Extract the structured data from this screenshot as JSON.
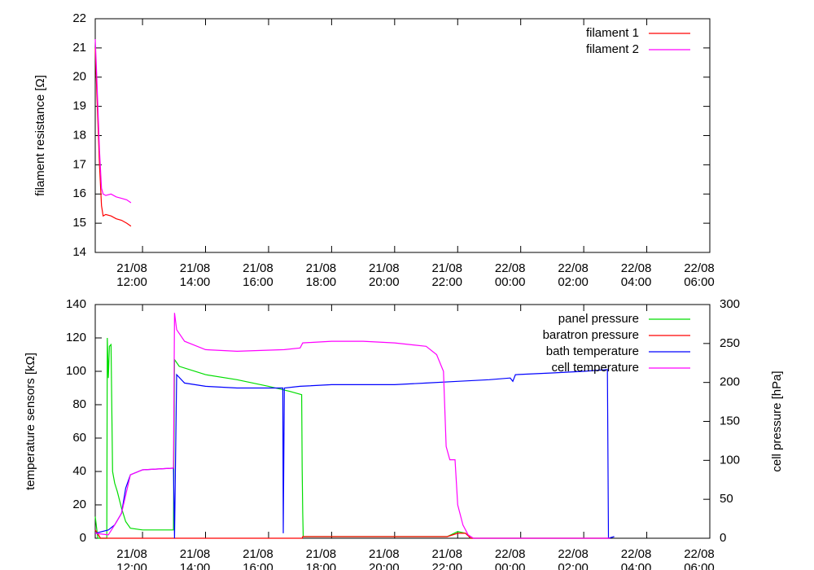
{
  "chart_data": [
    {
      "type": "line",
      "ylabel": "filament resistance [Ω]",
      "x": [
        "21/08 10:30",
        "21/08 10:33",
        "21/08 10:38",
        "21/08 10:42",
        "21/08 10:45",
        "21/08 10:50",
        "21/08 11:00",
        "21/08 11:10",
        "21/08 11:20",
        "21/08 11:30",
        "21/08 11:38"
      ],
      "series": [
        {
          "name": "filament 1",
          "color": "#ff0000",
          "values": [
            21.0,
            19.5,
            17.0,
            15.6,
            15.25,
            15.3,
            15.25,
            15.15,
            15.1,
            15.0,
            14.9
          ]
        },
        {
          "name": "filament 2",
          "color": "#ff00ff",
          "values": [
            21.3,
            20.0,
            17.5,
            16.2,
            16.0,
            15.95,
            16.0,
            15.9,
            15.85,
            15.8,
            15.7
          ]
        }
      ],
      "xlim": [
        "21/08 10:30",
        "22/08 06:00"
      ],
      "xticks": [
        {
          "date": "21/08",
          "time": "12:00"
        },
        {
          "date": "21/08",
          "time": "14:00"
        },
        {
          "date": "21/08",
          "time": "16:00"
        },
        {
          "date": "21/08",
          "time": "18:00"
        },
        {
          "date": "21/08",
          "time": "20:00"
        },
        {
          "date": "21/08",
          "time": "22:00"
        },
        {
          "date": "22/08",
          "time": "00:00"
        },
        {
          "date": "22/08",
          "time": "02:00"
        },
        {
          "date": "22/08",
          "time": "04:00"
        },
        {
          "date": "22/08",
          "time": "06:00"
        }
      ],
      "ylim": [
        14,
        22
      ],
      "yticks": [
        14,
        15,
        16,
        17,
        18,
        19,
        20,
        21,
        22
      ],
      "legend": "upper right"
    },
    {
      "type": "line",
      "ylabel": "temperature sensors [kΩ]",
      "y2label": "cell pressure [hPa]",
      "series": [
        {
          "name": "panel pressure",
          "color": "#00dd00",
          "x": [
            "21/08 10:30",
            "21/08 10:35",
            "21/08 10:52",
            "21/08 10:53",
            "21/08 10:55",
            "21/08 10:57",
            "21/08 11:00",
            "21/08 11:03",
            "21/08 11:07",
            "21/08 11:12",
            "21/08 11:20",
            "21/08 11:28",
            "21/08 11:37",
            "21/08 12:00",
            "21/08 12:59",
            "21/08 13:01",
            "21/08 13:10",
            "21/08 14:00",
            "21/08 15:00",
            "21/08 16:00",
            "21/08 16:40",
            "21/08 17:03",
            "21/08 17:04",
            "21/08 17:05",
            "21/08 17:06",
            "21/08 20:00",
            "21/08 21:40",
            "21/08 22:00",
            "21/08 22:15",
            "21/08 22:25",
            "22/08 02:50"
          ],
          "values": [
            13,
            0,
            0,
            120,
            96,
            115,
            116,
            40,
            33,
            28,
            18,
            10,
            6,
            5,
            5,
            107,
            103,
            98,
            95,
            91,
            88,
            86,
            42,
            15,
            1,
            1,
            1,
            4,
            3,
            0,
            0
          ]
        },
        {
          "name": "baratron pressure",
          "color": "#ff0000",
          "x": [
            "21/08 10:30",
            "21/08 10:40",
            "21/08 17:04",
            "21/08 17:05",
            "21/08 21:40",
            "21/08 22:00",
            "21/08 22:15",
            "21/08 22:25",
            "22/08 02:50"
          ],
          "values": [
            5,
            0,
            0,
            1,
            1,
            3,
            3,
            0,
            0
          ]
        },
        {
          "name": "bath temperature",
          "color": "#0000ff",
          "x": [
            "21/08 10:30",
            "21/08 10:55",
            "21/08 11:07",
            "21/08 11:20",
            "21/08 11:28",
            "21/08 11:37",
            "21/08 12:00",
            "21/08 12:59",
            "21/08 13:01",
            "21/08 13:05",
            "21/08 13:20",
            "21/08 14:00",
            "21/08 15:00",
            "21/08 16:27",
            "21/08 16:28",
            "21/08 16:30",
            "21/08 17:00",
            "21/08 18:00",
            "21/08 20:00",
            "21/08 21:00",
            "21/08 22:00",
            "21/08 23:00",
            "21/08 23:40",
            "21/08 23:45",
            "21/08 23:50",
            "22/08 01:00",
            "22/08 02:00",
            "22/08 02:45",
            "22/08 02:47",
            "22/08 02:58"
          ],
          "values": [
            3,
            5,
            8,
            15,
            30,
            38,
            41,
            42,
            0,
            98,
            93,
            91,
            90,
            90,
            3,
            90,
            91,
            92,
            92,
            93,
            94,
            95,
            96,
            94,
            98,
            99,
            100,
            101,
            0,
            1
          ]
        },
        {
          "name": "cell temperature",
          "color": "#ff00ff",
          "x": [
            "21/08 10:30",
            "21/08 10:55",
            "21/08 11:07",
            "21/08 11:20",
            "21/08 11:37",
            "21/08 12:00",
            "21/08 12:59",
            "21/08 13:01",
            "21/08 13:05",
            "21/08 13:20",
            "21/08 14:00",
            "21/08 15:00",
            "21/08 16:30",
            "21/08 17:00",
            "21/08 17:05",
            "21/08 18:00",
            "21/08 19:00",
            "21/08 20:00",
            "21/08 21:00",
            "21/08 21:20",
            "21/08 21:33",
            "21/08 21:38",
            "21/08 21:45",
            "21/08 21:55",
            "21/08 22:00",
            "21/08 22:10",
            "21/08 22:20",
            "21/08 22:30",
            "22/08 02:50"
          ],
          "values": [
            3,
            2,
            8,
            15,
            38,
            41,
            42,
            135,
            125,
            118,
            113,
            112,
            113,
            114,
            117,
            118,
            118,
            117,
            115,
            110,
            100,
            55,
            47,
            47,
            20,
            8,
            2,
            0,
            0
          ]
        }
      ],
      "xlim": [
        "21/08 10:30",
        "22/08 06:00"
      ],
      "xticks": [
        {
          "date": "21/08",
          "time": "12:00"
        },
        {
          "date": "21/08",
          "time": "14:00"
        },
        {
          "date": "21/08",
          "time": "16:00"
        },
        {
          "date": "21/08",
          "time": "18:00"
        },
        {
          "date": "21/08",
          "time": "20:00"
        },
        {
          "date": "21/08",
          "time": "22:00"
        },
        {
          "date": "22/08",
          "time": "00:00"
        },
        {
          "date": "22/08",
          "time": "02:00"
        },
        {
          "date": "22/08",
          "time": "04:00"
        },
        {
          "date": "22/08",
          "time": "06:00"
        }
      ],
      "ylim": [
        0,
        140
      ],
      "yticks": [
        0,
        20,
        40,
        60,
        80,
        100,
        120,
        140
      ],
      "y2lim": [
        0,
        300
      ],
      "y2ticks": [
        0,
        50,
        100,
        150,
        200,
        250,
        300
      ],
      "legend": "upper right"
    }
  ]
}
